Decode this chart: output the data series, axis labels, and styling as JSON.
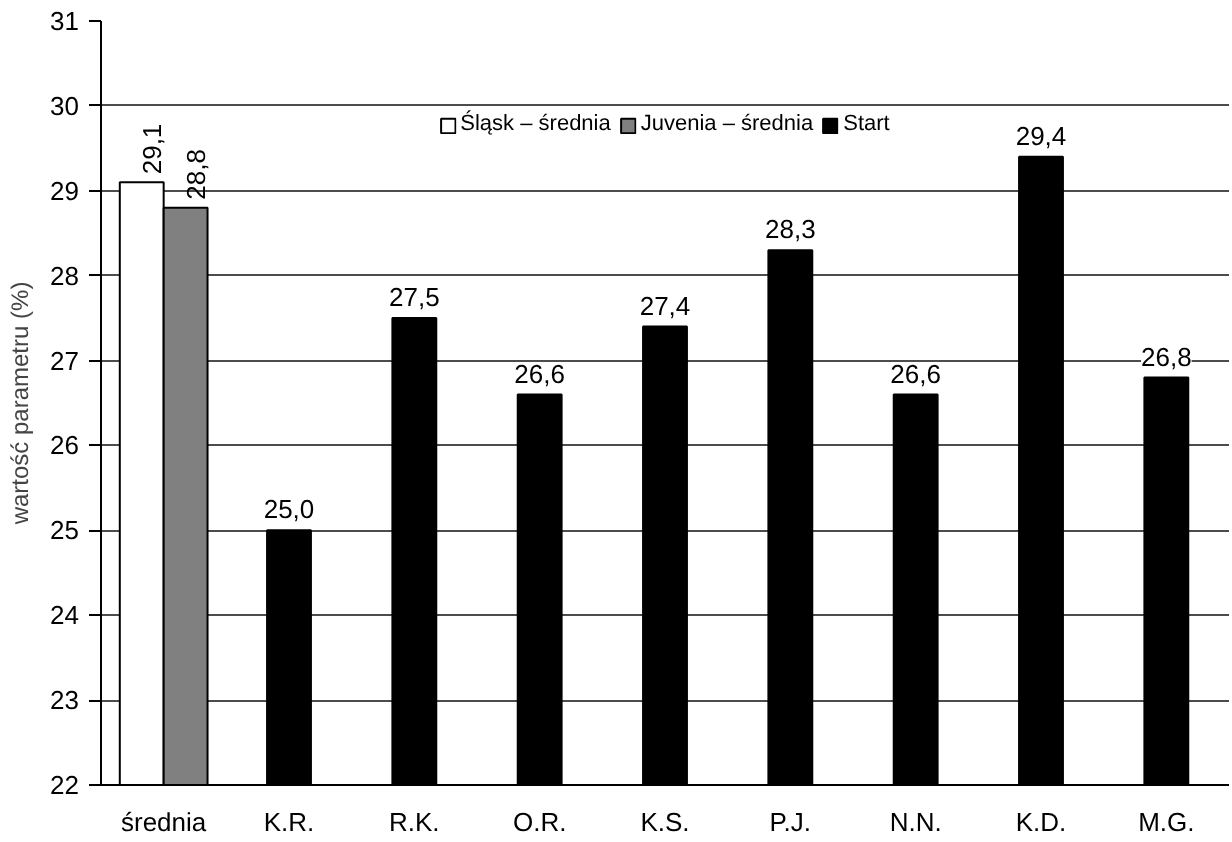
{
  "chart_data": {
    "type": "bar",
    "ylabel": "wartość parametru (%)",
    "categories": [
      "średnia",
      "K.R.",
      "R.K.",
      "O.R.",
      "K.S.",
      "P.J.",
      "N.N.",
      "K.D.",
      "M.G."
    ],
    "series": [
      {
        "name": "Śląsk – średnia",
        "color": "#ffffff",
        "values": [
          29.1,
          null,
          null,
          null,
          null,
          null,
          null,
          null,
          null
        ],
        "value_labels": [
          "29,1",
          null,
          null,
          null,
          null,
          null,
          null,
          null,
          null
        ]
      },
      {
        "name": "Juvenia – średnia",
        "color": "#808080",
        "values": [
          28.8,
          null,
          null,
          null,
          null,
          null,
          null,
          null,
          null
        ],
        "value_labels": [
          "28,8",
          null,
          null,
          null,
          null,
          null,
          null,
          null,
          null
        ]
      },
      {
        "name": "Start",
        "color": "#000000",
        "values": [
          null,
          25.0,
          27.5,
          26.6,
          27.4,
          28.3,
          26.6,
          29.4,
          26.8
        ],
        "value_labels": [
          null,
          "25,0",
          "27,5",
          "26,6",
          "27,4",
          "28,3",
          "26,6",
          "29,4",
          "26,8"
        ]
      }
    ],
    "ylim": [
      22,
      31
    ],
    "yticks": [
      22,
      23,
      24,
      25,
      26,
      27,
      28,
      29,
      30,
      31
    ],
    "grid": "y",
    "legend": "top"
  }
}
